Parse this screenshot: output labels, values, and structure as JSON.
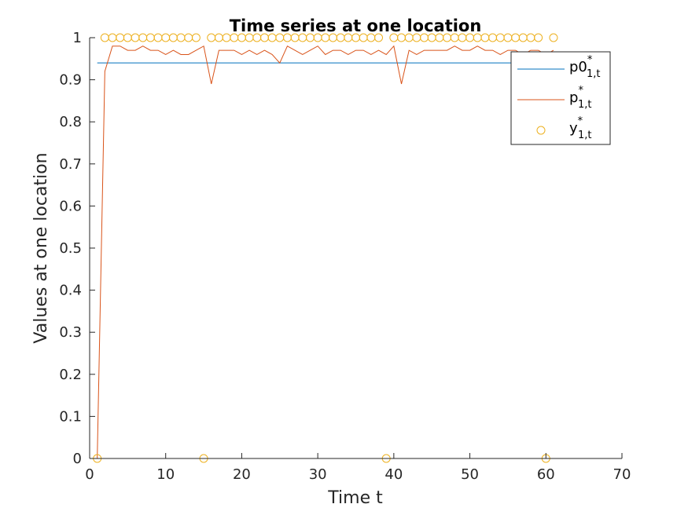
{
  "chart_data": {
    "type": "line",
    "title": "Time series at one location",
    "xlabel": "Time t",
    "ylabel": "Values at one location",
    "xlim": [
      0,
      70
    ],
    "ylim": [
      0,
      1
    ],
    "xticks": [
      "0",
      "10",
      "20",
      "30",
      "40",
      "50",
      "60",
      "70"
    ],
    "yticks": [
      "0",
      "0.1",
      "0.2",
      "0.3",
      "0.4",
      "0.5",
      "0.6",
      "0.7",
      "0.8",
      "0.9",
      "1"
    ],
    "grid": false,
    "legend": {
      "placement": "top-right",
      "entries": [
        {
          "base": "p0",
          "sub": "1,t",
          "sup": "*"
        },
        {
          "base": "p",
          "sub": "1,t",
          "sup": "*"
        },
        {
          "base": "y",
          "sub": "1,t",
          "sup": "*"
        }
      ]
    },
    "series": [
      {
        "style": "line",
        "color": "#0072BD",
        "x": [
          1,
          61
        ],
        "y": [
          0.94,
          0.94
        ]
      },
      {
        "style": "line",
        "color": "#D95319",
        "x": [
          1,
          2,
          3,
          4,
          5,
          6,
          7,
          8,
          9,
          10,
          11,
          12,
          13,
          14,
          15,
          16,
          17,
          18,
          19,
          20,
          21,
          22,
          23,
          24,
          25,
          26,
          27,
          28,
          29,
          30,
          31,
          32,
          33,
          34,
          35,
          36,
          37,
          38,
          39,
          40,
          41,
          42,
          43,
          44,
          45,
          46,
          47,
          48,
          49,
          50,
          51,
          52,
          53,
          54,
          55,
          56,
          57,
          58,
          59,
          60,
          61
        ],
        "y": [
          0.0,
          0.92,
          0.98,
          0.98,
          0.97,
          0.97,
          0.98,
          0.97,
          0.97,
          0.96,
          0.97,
          0.96,
          0.96,
          0.97,
          0.98,
          0.89,
          0.97,
          0.97,
          0.97,
          0.96,
          0.97,
          0.96,
          0.97,
          0.96,
          0.94,
          0.98,
          0.97,
          0.96,
          0.97,
          0.98,
          0.96,
          0.97,
          0.97,
          0.96,
          0.97,
          0.97,
          0.96,
          0.97,
          0.96,
          0.98,
          0.89,
          0.97,
          0.96,
          0.97,
          0.97,
          0.97,
          0.97,
          0.98,
          0.97,
          0.97,
          0.98,
          0.97,
          0.97,
          0.96,
          0.97,
          0.97,
          0.96,
          0.97,
          0.97,
          0.96,
          0.97
        ]
      },
      {
        "style": "markers",
        "color": "#EDB120",
        "x": [
          1,
          2,
          3,
          4,
          5,
          6,
          7,
          8,
          9,
          10,
          11,
          12,
          13,
          14,
          15,
          16,
          17,
          18,
          19,
          20,
          21,
          22,
          23,
          24,
          25,
          26,
          27,
          28,
          29,
          30,
          31,
          32,
          33,
          34,
          35,
          36,
          37,
          38,
          39,
          40,
          41,
          42,
          43,
          44,
          45,
          46,
          47,
          48,
          49,
          50,
          51,
          52,
          53,
          54,
          55,
          56,
          57,
          58,
          59,
          60,
          61
        ],
        "y": [
          0,
          1,
          1,
          1,
          1,
          1,
          1,
          1,
          1,
          1,
          1,
          1,
          1,
          1,
          0,
          1,
          1,
          1,
          1,
          1,
          1,
          1,
          1,
          1,
          1,
          1,
          1,
          1,
          1,
          1,
          1,
          1,
          1,
          1,
          1,
          1,
          1,
          1,
          0,
          1,
          1,
          1,
          1,
          1,
          1,
          1,
          1,
          1,
          1,
          1,
          1,
          1,
          1,
          1,
          1,
          1,
          1,
          1,
          1,
          0,
          1
        ]
      }
    ]
  }
}
